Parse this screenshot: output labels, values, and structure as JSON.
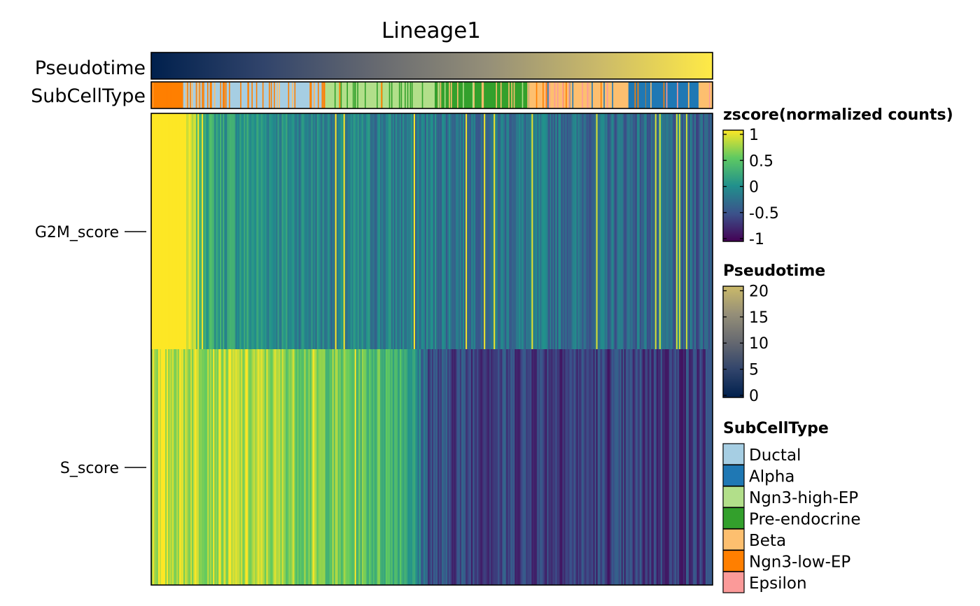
{
  "chart_data": {
    "type": "heatmap",
    "title": "Lineage1",
    "rows": [
      "G2M_score",
      "S_score"
    ],
    "annotations": [
      {
        "name": "Pseudotime",
        "kind": "continuous",
        "range": [
          0,
          21
        ]
      },
      {
        "name": "SubCellType",
        "kind": "categorical",
        "segments": [
          {
            "category": "Beta",
            "x_fraction": [
              0.0,
              0.004
            ]
          },
          {
            "category": "Ngn3-low-EP",
            "x_fraction": [
              0.004,
              0.055
            ]
          },
          {
            "category": "Ductal",
            "x_fraction": [
              0.055,
              0.31
            ]
          },
          {
            "category": "Ngn3-high-EP",
            "x_fraction": [
              0.31,
              0.505
            ]
          },
          {
            "category": "Pre-endocrine",
            "x_fraction": [
              0.505,
              0.67
            ]
          },
          {
            "category": "Beta",
            "x_fraction": [
              0.67,
              0.85
            ]
          },
          {
            "category": "Alpha",
            "x_fraction": [
              0.85,
              0.975
            ]
          },
          {
            "category": "Beta",
            "x_fraction": [
              0.975,
              1.0
            ]
          }
        ]
      }
    ],
    "row_trends": [
      {
        "row": "G2M_score",
        "knots_x_fraction": [
          0.0,
          0.06,
          0.085,
          0.11,
          0.3,
          1.0
        ],
        "knots_zscore": [
          1.0,
          1.0,
          0.5,
          0.15,
          -0.1,
          -0.35
        ]
      },
      {
        "row": "S_score",
        "knots_x_fraction": [
          0.0,
          0.2,
          0.45,
          0.5,
          1.0
        ],
        "knots_zscore": [
          0.85,
          0.72,
          0.35,
          -0.55,
          -0.65
        ]
      }
    ],
    "legends": {
      "zscore": {
        "title": "zscore(normalized counts)",
        "ticks": [
          1,
          0.5,
          0,
          -0.5,
          -1
        ],
        "tick_labels": [
          "1",
          "0.5",
          "0",
          "-0.5",
          "-1"
        ],
        "range": [
          -1,
          1
        ]
      },
      "pseudotime": {
        "title": "Pseudotime",
        "ticks": [
          20,
          15,
          10,
          5,
          0
        ],
        "tick_labels": [
          "20",
          "15",
          "10",
          "5",
          "0"
        ],
        "range": [
          0,
          21
        ]
      },
      "subcelltype": {
        "title": "SubCellType",
        "items": [
          {
            "label": "Ductal",
            "color": "#a6cee3"
          },
          {
            "label": "Alpha",
            "color": "#1f78b4"
          },
          {
            "label": "Ngn3-high-EP",
            "color": "#b2df8a"
          },
          {
            "label": "Pre-endocrine",
            "color": "#33a02c"
          },
          {
            "label": "Beta",
            "color": "#fdbf6f"
          },
          {
            "label": "Ngn3-low-EP",
            "color": "#ff7f00"
          },
          {
            "label": "Epsilon",
            "color": "#fb9a99"
          }
        ]
      }
    },
    "colormaps": {
      "viridis": [
        "#440154",
        "#3b528b",
        "#21908c",
        "#5ec962",
        "#fde725"
      ],
      "cividis": [
        "#00204d",
        "#31446b",
        "#666970",
        "#958f78",
        "#cbba69",
        "#ffea46"
      ]
    }
  }
}
